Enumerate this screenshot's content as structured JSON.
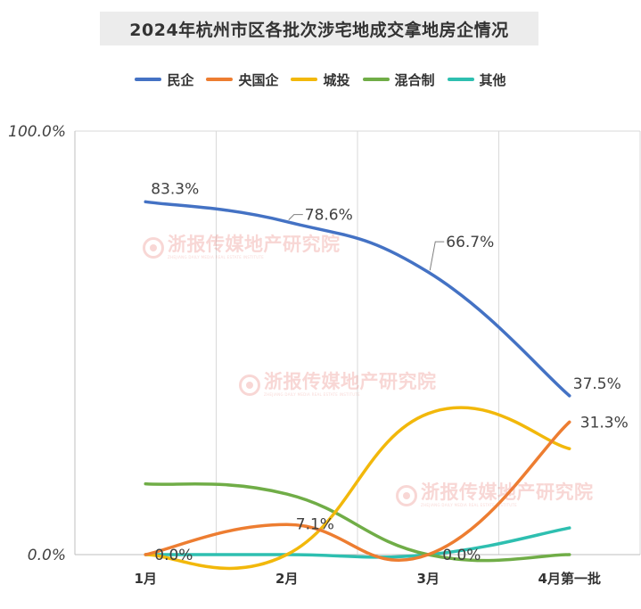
{
  "chart_data": {
    "type": "line",
    "title": "2024年杭州市区各批次涉宅地成交拿地房企情况",
    "categories": [
      "1月",
      "2月",
      "3月",
      "4月第一批"
    ],
    "ylim": [
      0,
      100
    ],
    "y_ticks": [
      "0.0%",
      "100.0%"
    ],
    "grid": true,
    "legend_position": "top",
    "series": [
      {
        "name": "民企",
        "color": "#4472c4",
        "values": [
          83.3,
          78.6,
          66.7,
          37.5
        ],
        "labels": [
          "83.3%",
          "78.6%",
          "66.7%",
          "37.5%"
        ]
      },
      {
        "name": "央国企",
        "color": "#ed7d31",
        "values": [
          0.0,
          7.1,
          0.0,
          31.3
        ],
        "labels": [
          "0.0%",
          "7.1%",
          "0.0%",
          "31.3%"
        ]
      },
      {
        "name": "城投",
        "color": "#f2b80b",
        "values": [
          0.0,
          0.0,
          33.3,
          25.0
        ],
        "labels": []
      },
      {
        "name": "混合制",
        "color": "#70ad47",
        "values": [
          16.7,
          14.3,
          0.0,
          0.0
        ],
        "labels": []
      },
      {
        "name": "其他",
        "color": "#2ebfb0",
        "values": [
          0.0,
          0.0,
          0.0,
          6.3
        ],
        "labels": []
      }
    ]
  },
  "watermark": {
    "text": "浙报传媒地产研究院",
    "subtext": "ZHEJIANG DAILY MEDIA REAL ESTATE INSTITUTE"
  }
}
